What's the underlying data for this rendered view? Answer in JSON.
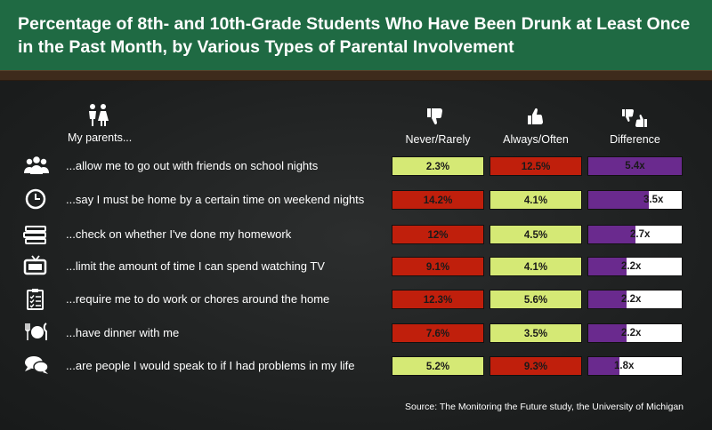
{
  "title": "Percentage of 8th- and 10th-Grade Students Who Have Been Drunk at Least Once in the Past Month, by Various Types of Parental Involvement",
  "parents_heading": "My parents...",
  "columns": {
    "never": "Never/Rarely",
    "always": "Always/Often",
    "difference": "Difference"
  },
  "source": "Source: The Monitoring the Future study, the University of Michigan",
  "colors": {
    "low": "#d5e975",
    "high": "#c01f0c",
    "difference": "#6a2a8e"
  },
  "chart_data": {
    "type": "table",
    "title": "Percentage of 8th- and 10th-Grade Students Who Have Been Drunk at Least Once in the Past Month, by Various Types of Parental Involvement",
    "columns": [
      "Never/Rarely",
      "Always/Often",
      "Difference"
    ],
    "difference_max": 5.4,
    "rows": [
      {
        "label": "...allow me to go out with friends on school nights",
        "icon": "group-icon",
        "never": 2.3,
        "never_text": "2.3%",
        "always": 12.5,
        "always_text": "12.5%",
        "difference": 5.4,
        "difference_text": "5.4x",
        "never_higher": false
      },
      {
        "label": "...say I must be home by a certain time on weekend nights",
        "icon": "clock-icon",
        "never": 14.2,
        "never_text": "14.2%",
        "always": 4.1,
        "always_text": "4.1%",
        "difference": 3.5,
        "difference_text": "3.5x",
        "never_higher": true
      },
      {
        "label": "...check on whether I've done my homework",
        "icon": "books-icon",
        "never": 12,
        "never_text": "12%",
        "always": 4.5,
        "always_text": "4.5%",
        "difference": 2.7,
        "difference_text": "2.7x",
        "never_higher": true
      },
      {
        "label": "...limit the amount of time I can spend watching TV",
        "icon": "tv-icon",
        "never": 9.1,
        "never_text": "9.1%",
        "always": 4.1,
        "always_text": "4.1%",
        "difference": 2.2,
        "difference_text": "2.2x",
        "never_higher": true
      },
      {
        "label": "...require me to do work or chores around the home",
        "icon": "clipboard-icon",
        "never": 12.3,
        "never_text": "12.3%",
        "always": 5.6,
        "always_text": "5.6%",
        "difference": 2.2,
        "difference_text": "2.2x",
        "never_higher": true
      },
      {
        "label": "...have dinner with me",
        "icon": "dinner-icon",
        "never": 7.6,
        "never_text": "7.6%",
        "always": 3.5,
        "always_text": "3.5%",
        "difference": 2.2,
        "difference_text": "2.2x",
        "never_higher": true
      },
      {
        "label": "...are people I would speak to if I had problems in my life",
        "icon": "speech-bubbles-icon",
        "never": 5.2,
        "never_text": "5.2%",
        "always": 9.3,
        "always_text": "9.3%",
        "difference": 1.8,
        "difference_text": "1.8x",
        "never_higher": false
      }
    ]
  }
}
